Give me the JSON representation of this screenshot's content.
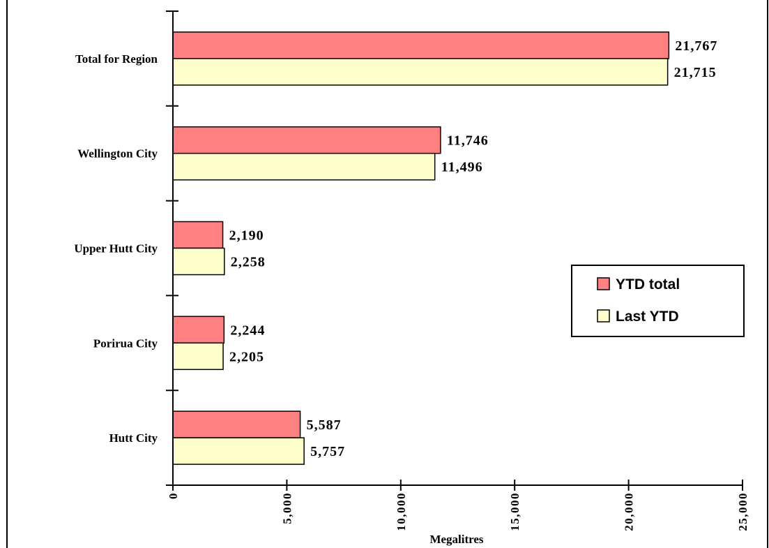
{
  "colors": {
    "background": "#ffffff",
    "axis": "#000000",
    "ytd_total": "#ff8080",
    "last_ytd": "#ffffcc"
  },
  "chart_data": {
    "type": "bar",
    "orientation": "horizontal",
    "title": "",
    "xlabel": "Megalitres",
    "ylabel": "",
    "categories": [
      "Total for Region",
      "Wellington City",
      "Upper Hutt City",
      "Porirua City",
      "Hutt City"
    ],
    "series": [
      {
        "name": "YTD total",
        "color": "#ff8080",
        "values": [
          21767,
          11746,
          2190,
          2244,
          5587
        ],
        "labels": [
          "21,767",
          "11,746",
          "2,190",
          "2,244",
          "5,587"
        ]
      },
      {
        "name": "Last YTD",
        "color": "#ffffcc",
        "values": [
          21715,
          11496,
          2258,
          2205,
          5757
        ],
        "labels": [
          "21,715",
          "11,496",
          "2,258",
          "2,205",
          "5,757"
        ]
      }
    ],
    "xlim": [
      0,
      25000
    ],
    "xticks": [
      0,
      5000,
      10000,
      15000,
      20000,
      25000
    ],
    "xtick_labels": [
      "0",
      "5,000",
      "10,000",
      "15,000",
      "20,000",
      "25,000"
    ],
    "grid": false,
    "legend_position": "right"
  }
}
